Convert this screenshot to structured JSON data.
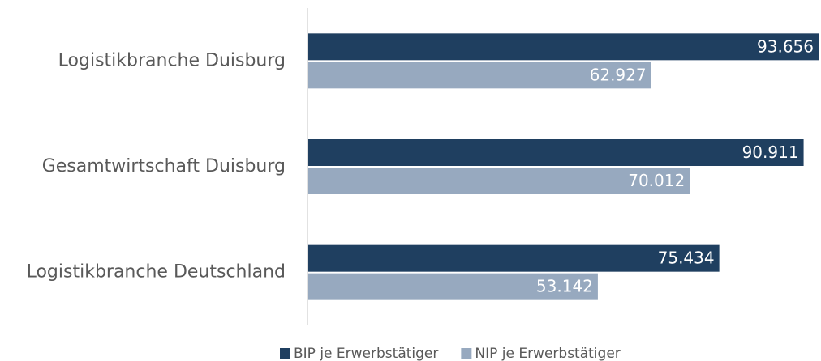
{
  "chart_data": {
    "type": "barh",
    "categories": [
      "Logistikbranche Duisburg",
      "Gesamtwirtschaft Duisburg",
      "Logistikbranche Deutschland"
    ],
    "series": [
      {
        "name": "BIP je Erwerbstätiger",
        "color": "#1f3f60",
        "values": [
          93656,
          90911,
          75434
        ],
        "value_labels": [
          "93.656",
          "90.911",
          "75.434"
        ]
      },
      {
        "name": "NIP je Erwerbstätiger",
        "color": "#97a9bf",
        "values": [
          62927,
          70012,
          53142
        ],
        "value_labels": [
          "62.927",
          "70.012",
          "53.142"
        ]
      }
    ],
    "legend": "bottom"
  }
}
